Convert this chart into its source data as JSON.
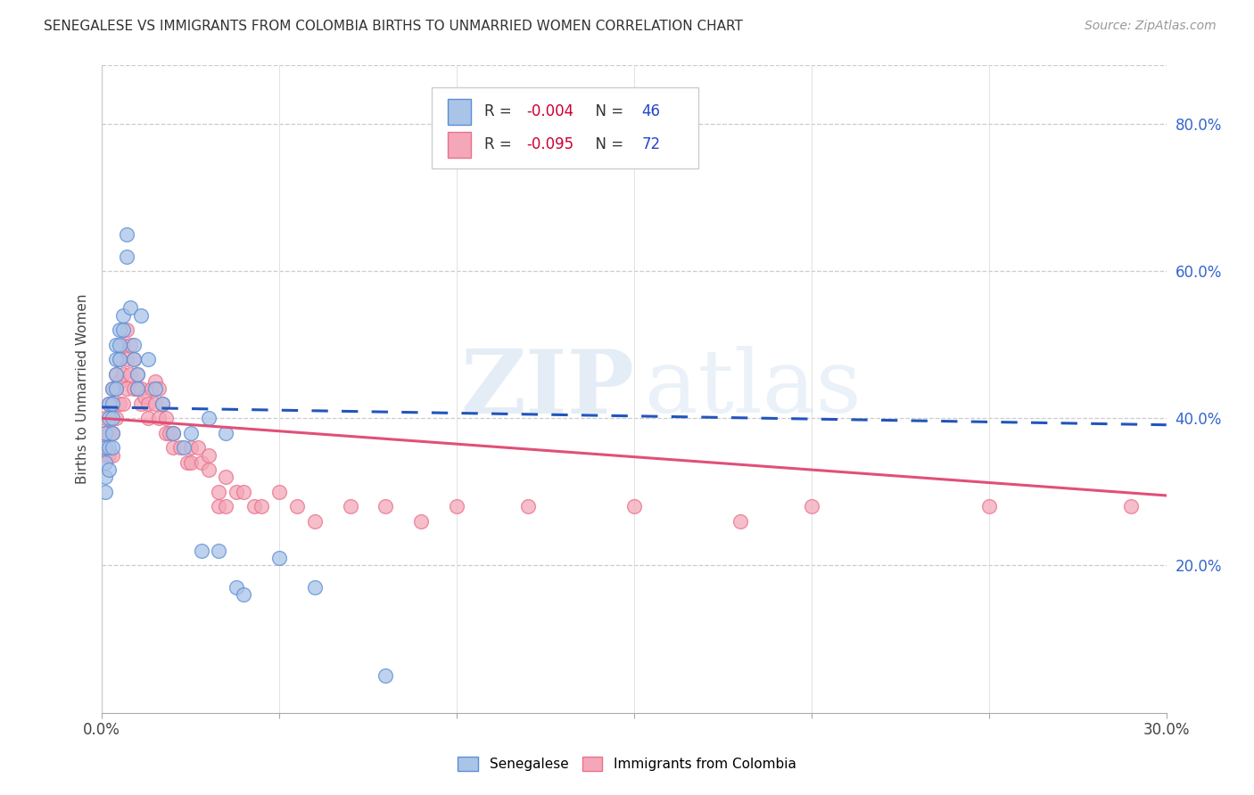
{
  "title": "SENEGALESE VS IMMIGRANTS FROM COLOMBIA BIRTHS TO UNMARRIED WOMEN CORRELATION CHART",
  "source": "Source: ZipAtlas.com",
  "ylabel": "Births to Unmarried Women",
  "xlim": [
    0.0,
    0.3
  ],
  "ylim": [
    0.0,
    0.88
  ],
  "xticks": [
    0.0,
    0.05,
    0.1,
    0.15,
    0.2,
    0.25,
    0.3
  ],
  "yticks_right": [
    0.2,
    0.4,
    0.6,
    0.8
  ],
  "ytick_labels_right": [
    "20.0%",
    "40.0%",
    "60.0%",
    "80.0%"
  ],
  "color_senegalese": "#aac4e8",
  "color_senegalese_dark": "#5b8ed6",
  "color_colombia": "#f4a7b9",
  "color_colombia_dark": "#e8728a",
  "color_trendline_blue": "#2255bb",
  "color_trendline_pink": "#e05078",
  "background_color": "#ffffff",
  "watermark_zip": "ZIP",
  "watermark_atlas": "atlas",
  "senegalese_x": [
    0.001,
    0.001,
    0.001,
    0.001,
    0.001,
    0.002,
    0.002,
    0.002,
    0.002,
    0.003,
    0.003,
    0.003,
    0.003,
    0.003,
    0.004,
    0.004,
    0.004,
    0.004,
    0.005,
    0.005,
    0.005,
    0.006,
    0.006,
    0.007,
    0.007,
    0.008,
    0.009,
    0.009,
    0.01,
    0.01,
    0.011,
    0.013,
    0.015,
    0.017,
    0.02,
    0.023,
    0.025,
    0.028,
    0.03,
    0.033,
    0.035,
    0.038,
    0.04,
    0.05,
    0.06,
    0.08
  ],
  "senegalese_y": [
    0.38,
    0.36,
    0.34,
    0.32,
    0.3,
    0.42,
    0.4,
    0.36,
    0.33,
    0.44,
    0.42,
    0.4,
    0.38,
    0.36,
    0.5,
    0.48,
    0.46,
    0.44,
    0.52,
    0.5,
    0.48,
    0.54,
    0.52,
    0.62,
    0.65,
    0.55,
    0.5,
    0.48,
    0.46,
    0.44,
    0.54,
    0.48,
    0.44,
    0.42,
    0.38,
    0.36,
    0.38,
    0.22,
    0.4,
    0.22,
    0.38,
    0.17,
    0.16,
    0.21,
    0.17,
    0.05
  ],
  "colombia_x": [
    0.001,
    0.001,
    0.001,
    0.001,
    0.002,
    0.002,
    0.002,
    0.003,
    0.003,
    0.003,
    0.003,
    0.004,
    0.004,
    0.004,
    0.005,
    0.005,
    0.005,
    0.006,
    0.006,
    0.006,
    0.007,
    0.007,
    0.007,
    0.008,
    0.008,
    0.009,
    0.009,
    0.01,
    0.01,
    0.011,
    0.011,
    0.012,
    0.013,
    0.013,
    0.014,
    0.015,
    0.015,
    0.016,
    0.016,
    0.017,
    0.018,
    0.018,
    0.019,
    0.02,
    0.02,
    0.022,
    0.024,
    0.025,
    0.025,
    0.027,
    0.028,
    0.03,
    0.03,
    0.033,
    0.033,
    0.035,
    0.035,
    0.038,
    0.04,
    0.043,
    0.045,
    0.05,
    0.055,
    0.06,
    0.07,
    0.08,
    0.09,
    0.1,
    0.12,
    0.15,
    0.18,
    0.2,
    0.25,
    0.29
  ],
  "colombia_y": [
    0.4,
    0.38,
    0.36,
    0.35,
    0.42,
    0.38,
    0.35,
    0.44,
    0.42,
    0.38,
    0.35,
    0.46,
    0.44,
    0.4,
    0.48,
    0.45,
    0.42,
    0.5,
    0.46,
    0.42,
    0.52,
    0.48,
    0.44,
    0.5,
    0.46,
    0.48,
    0.44,
    0.46,
    0.44,
    0.44,
    0.42,
    0.43,
    0.42,
    0.4,
    0.44,
    0.45,
    0.42,
    0.44,
    0.4,
    0.42,
    0.4,
    0.38,
    0.38,
    0.38,
    0.36,
    0.36,
    0.34,
    0.36,
    0.34,
    0.36,
    0.34,
    0.35,
    0.33,
    0.3,
    0.28,
    0.32,
    0.28,
    0.3,
    0.3,
    0.28,
    0.28,
    0.3,
    0.28,
    0.26,
    0.28,
    0.28,
    0.26,
    0.28,
    0.28,
    0.28,
    0.26,
    0.28,
    0.28,
    0.28
  ]
}
